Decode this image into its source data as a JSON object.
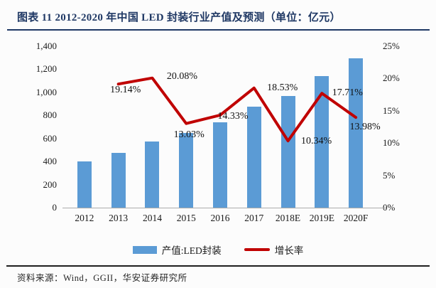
{
  "figure": {
    "source_note": "资料来源：Wind，GGII，华安证券研究所"
  },
  "colors": {
    "bar_fill": "#5B9BD5",
    "line_stroke": "#C00000",
    "title_text": "#1F3864",
    "axis_text": "#1a1a1a"
  },
  "chart_data": {
    "type": "combo-bar-line",
    "title": "图表 11 2012-2020 年中国 LED 封装行业产值及预测（单位：亿元）",
    "categories": [
      "2012",
      "2013",
      "2014",
      "2015",
      "2016",
      "2017",
      "2018E",
      "2019E",
      "2020F"
    ],
    "series": [
      {
        "name": "产值:LED封装",
        "type": "bar",
        "axis": "left",
        "color": "#5B9BD5",
        "values": [
          400,
          477,
          572,
          646,
          739,
          876,
          967,
          1139,
          1298
        ]
      },
      {
        "name": "增长率",
        "type": "line",
        "axis": "right",
        "color": "#C00000",
        "categories": [
          "2013",
          "2014",
          "2015",
          "2016",
          "2017",
          "2018E",
          "2019E",
          "2020F"
        ],
        "values": [
          19.14,
          20.08,
          13.03,
          14.33,
          18.53,
          10.34,
          17.71,
          13.98
        ],
        "point_labels": [
          "19.14%",
          "20.08%",
          "13.03%",
          "14.33%",
          "18.53%",
          "10.34%",
          "17.71%",
          "13.98%"
        ]
      }
    ],
    "left_axis": {
      "min": 0,
      "max": 1400,
      "tick_step": 200,
      "tick_labels": [
        "0",
        "200",
        "400",
        "600",
        "800",
        "1,000",
        "1,200",
        "1,400"
      ]
    },
    "right_axis": {
      "min": 0,
      "max": 25,
      "tick_step": 5,
      "tick_labels": [
        "0%",
        "5%",
        "10%",
        "15%",
        "20%",
        "25%"
      ]
    },
    "grid": false,
    "legend_position": "bottom"
  }
}
